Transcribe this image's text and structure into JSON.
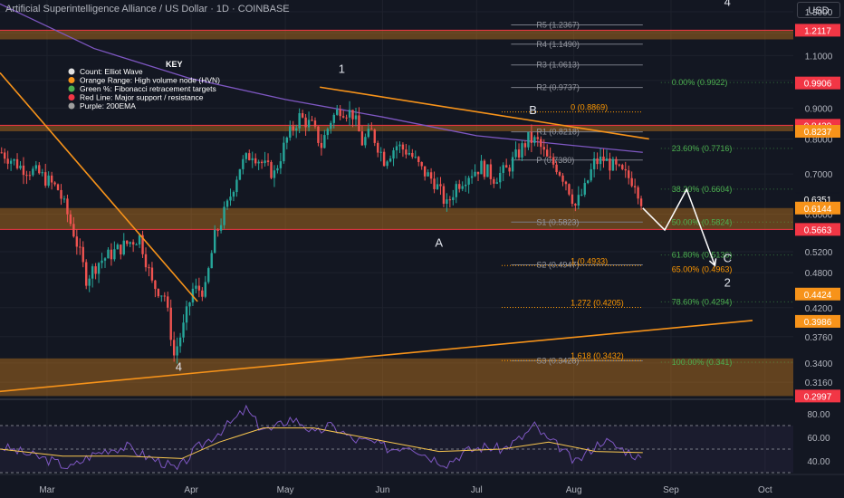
{
  "header": {
    "title": "Artificial Superintelligence Alliance / US Dollar · 1D · COINBASE",
    "currency_button": "USD"
  },
  "colors": {
    "background": "#131722",
    "up": "#26a69a",
    "down": "#ef5350",
    "orange": "#f7931a",
    "purple": "#7e57c2",
    "red_line": "#f23645",
    "fib_green": "#4caf50",
    "fib_orange": "#ff9800"
  },
  "chart_data": {
    "type": "candlestick",
    "scale": "log",
    "ylim": [
      0.297,
      1.36
    ],
    "price_ticks": [
      "1.3000",
      "1.2000",
      "1.1000",
      "1.0000",
      "0.9000",
      "0.8000",
      "0.7000",
      "0.6000",
      "0.5200",
      "0.4800",
      "0.4200",
      "0.3760",
      "0.3400",
      "0.3160"
    ],
    "price_tick_values": [
      1.3,
      1.2,
      1.1,
      1.0,
      0.9,
      0.8,
      0.7,
      0.6,
      0.52,
      0.48,
      0.42,
      0.376,
      0.34,
      0.316
    ],
    "price_badges": [
      {
        "text": "1.2117",
        "value": 1.2117,
        "color": "#f23645"
      },
      {
        "text": "0.9906",
        "value": 0.9906,
        "color": "#f23645"
      },
      {
        "text": "0.8429",
        "value": 0.8429,
        "color": "#f23645"
      },
      {
        "text": "0.8237",
        "value": 0.8237,
        "color": "#f7931a"
      },
      {
        "text": "0.6351",
        "value": 0.6351,
        "color": "#131722"
      },
      {
        "text": "0.6144",
        "value": 0.6144,
        "color": "#f7931a"
      },
      {
        "text": "0.5663",
        "value": 0.5663,
        "color": "#f23645"
      },
      {
        "text": "0.4424",
        "value": 0.4424,
        "color": "#f7931a"
      },
      {
        "text": "0.3986",
        "value": 0.3986,
        "color": "#f7931a"
      },
      {
        "text": "0.2997",
        "value": 0.2997,
        "color": "#f23645"
      }
    ],
    "x_labels": [
      "Mar",
      "Apr",
      "May",
      "Jun",
      "Jul",
      "Aug",
      "Sep",
      "Oct"
    ],
    "x_label_days": [
      15,
      61,
      91,
      122,
      152,
      183,
      214,
      244
    ],
    "x_range_days": [
      0,
      253
    ],
    "closes": [
      {
        "d": 0,
        "c": 0.76
      },
      {
        "d": 6,
        "c": 0.72
      },
      {
        "d": 12,
        "c": 0.7
      },
      {
        "d": 18,
        "c": 0.66
      },
      {
        "d": 23,
        "c": 0.56
      },
      {
        "d": 27,
        "c": 0.47
      },
      {
        "d": 31,
        "c": 0.5
      },
      {
        "d": 36,
        "c": 0.52
      },
      {
        "d": 41,
        "c": 0.54
      },
      {
        "d": 44,
        "c": 0.55
      },
      {
        "d": 48,
        "c": 0.46
      },
      {
        "d": 52,
        "c": 0.44
      },
      {
        "d": 55,
        "c": 0.35
      },
      {
        "d": 58,
        "c": 0.39
      },
      {
        "d": 61,
        "c": 0.45
      },
      {
        "d": 65,
        "c": 0.45
      },
      {
        "d": 68,
        "c": 0.55
      },
      {
        "d": 72,
        "c": 0.62
      },
      {
        "d": 76,
        "c": 0.72
      },
      {
        "d": 80,
        "c": 0.76
      },
      {
        "d": 84,
        "c": 0.72
      },
      {
        "d": 87,
        "c": 0.7
      },
      {
        "d": 91,
        "c": 0.8
      },
      {
        "d": 95,
        "c": 0.87
      },
      {
        "d": 99,
        "c": 0.84
      },
      {
        "d": 102,
        "c": 0.78
      },
      {
        "d": 105,
        "c": 0.86
      },
      {
        "d": 108,
        "c": 0.9
      },
      {
        "d": 112,
        "c": 0.88
      },
      {
        "d": 115,
        "c": 0.79
      },
      {
        "d": 118,
        "c": 0.82
      },
      {
        "d": 122,
        "c": 0.74
      },
      {
        "d": 126,
        "c": 0.78
      },
      {
        "d": 130,
        "c": 0.76
      },
      {
        "d": 134,
        "c": 0.71
      },
      {
        "d": 138,
        "c": 0.68
      },
      {
        "d": 142,
        "c": 0.62
      },
      {
        "d": 145,
        "c": 0.67
      },
      {
        "d": 149,
        "c": 0.7
      },
      {
        "d": 153,
        "c": 0.72
      },
      {
        "d": 157,
        "c": 0.69
      },
      {
        "d": 161,
        "c": 0.71
      },
      {
        "d": 165,
        "c": 0.76
      },
      {
        "d": 168,
        "c": 0.8
      },
      {
        "d": 171,
        "c": 0.79
      },
      {
        "d": 174,
        "c": 0.74
      },
      {
        "d": 177,
        "c": 0.72
      },
      {
        "d": 180,
        "c": 0.68
      },
      {
        "d": 183,
        "c": 0.62
      },
      {
        "d": 186,
        "c": 0.66
      },
      {
        "d": 189,
        "c": 0.73
      },
      {
        "d": 192,
        "c": 0.74
      },
      {
        "d": 195,
        "c": 0.72
      },
      {
        "d": 198,
        "c": 0.7
      },
      {
        "d": 202,
        "c": 0.68
      },
      {
        "d": 205,
        "c": 0.61
      }
    ],
    "projection": [
      {
        "d": 205,
        "c": 0.6144
      },
      {
        "d": 212,
        "c": 0.565
      },
      {
        "d": 219,
        "c": 0.66
      },
      {
        "d": 228,
        "c": 0.4933
      }
    ],
    "ema200": [
      {
        "d": 0,
        "c": 1.34
      },
      {
        "d": 30,
        "c": 1.13
      },
      {
        "d": 60,
        "c": 1.01
      },
      {
        "d": 91,
        "c": 0.93
      },
      {
        "d": 122,
        "c": 0.87
      },
      {
        "d": 152,
        "c": 0.81
      },
      {
        "d": 183,
        "c": 0.78
      },
      {
        "d": 205,
        "c": 0.76
      }
    ],
    "zones": [
      {
        "name": "Orange Range: High volume node (HVN)",
        "from": 1.17,
        "to": 1.2117
      },
      {
        "name": "Orange Range: High volume node (HVN)",
        "from": 0.8237,
        "to": 0.8429
      },
      {
        "name": "Orange Range: High volume node (HVN)",
        "from": 0.5663,
        "to": 0.6144
      },
      {
        "name": "Orange Range: High volume node (HVN)",
        "from": 0.2997,
        "to": 0.346
      }
    ],
    "red_lines": [
      1.2117,
      0.8429,
      0.5663
    ],
    "trendlines": [
      {
        "from": {
          "d": 0,
          "v": 1.03
        },
        "to": {
          "d": 63,
          "v": 0.43
        }
      },
      {
        "from": {
          "d": 102,
          "v": 0.975
        },
        "to": {
          "d": 207,
          "v": 0.8
        }
      },
      {
        "from": {
          "d": 0,
          "v": 0.305
        },
        "to": {
          "d": 240,
          "v": 0.4
        }
      }
    ],
    "pivots": [
      {
        "label": "R5 (1.2367)",
        "v": 1.2367
      },
      {
        "label": "R4 (1.1490)",
        "v": 1.149
      },
      {
        "label": "R3 (1.0613)",
        "v": 1.0613
      },
      {
        "label": "R2 (0.9737)",
        "v": 0.9737
      },
      {
        "label": "R1 (0.8218)",
        "v": 0.8218
      },
      {
        "label": "P (0.7380)",
        "v": 0.738
      },
      {
        "label": "S1 (0.5823)",
        "v": 0.5823
      },
      {
        "label": "S2 (0.4947)",
        "v": 0.4947
      },
      {
        "label": "S3 (0.3428)",
        "v": 0.3428
      }
    ],
    "fib_retracement": [
      {
        "label": "0.00% (0.9922)",
        "v": 0.9922
      },
      {
        "label": "23.60% (0.7716)",
        "v": 0.7716
      },
      {
        "label": "38.20% (0.6604)",
        "v": 0.6604
      },
      {
        "label": "50.00% (0.5824)",
        "v": 0.5824
      },
      {
        "label": "61.80% (0.5136)",
        "v": 0.5136
      },
      {
        "label": "78.60% (0.4294)",
        "v": 0.4294
      },
      {
        "label": "100.00% (0.341)",
        "v": 0.341
      }
    ],
    "fib_extension": [
      {
        "label": "0 (0.8869)",
        "v": 0.8869
      },
      {
        "label": "1 (0.4933)",
        "v": 0.4933
      },
      {
        "label": "1.272 (0.4205)",
        "v": 0.4205
      },
      {
        "label": "1.618 (0.3432)",
        "v": 0.3432
      }
    ],
    "fib_65": {
      "label": "65.00% (0.4963)",
      "v": 0.4963
    },
    "wave_labels": [
      {
        "text": "4",
        "d": 57,
        "v": 0.33
      },
      {
        "text": "1",
        "d": 109,
        "v": 1.03
      },
      {
        "text": "A",
        "d": 140,
        "v": 0.53
      },
      {
        "text": "B",
        "d": 170,
        "v": 0.88
      },
      {
        "text": "C",
        "d": 232,
        "v": 0.5
      },
      {
        "text": "2",
        "d": 232,
        "v": 0.455
      },
      {
        "text": "4",
        "d": 232,
        "v": 1.33
      }
    ],
    "key": {
      "title": "KEY",
      "items": [
        {
          "text": "Count: Elliot Wave",
          "color": "#e0e0e0"
        },
        {
          "text": "Orange Range: High volume node (HVN)",
          "color": "#f7931a"
        },
        {
          "text": "Green %: Fibonacci retracement targets",
          "color": "#4caf50"
        },
        {
          "text": "Red Line: Major support / resistance",
          "color": "#f23645"
        },
        {
          "text": "Purple: 200EMA",
          "color": "#9e9e9e"
        }
      ]
    },
    "rsi": {
      "ylim": [
        30,
        90
      ],
      "ticks": [
        "80.00",
        "60.00",
        "40.00"
      ],
      "tick_values": [
        80,
        60,
        40
      ],
      "band": [
        30,
        70
      ],
      "values": [
        {
          "d": 0,
          "v": 52
        },
        {
          "d": 8,
          "v": 46
        },
        {
          "d": 16,
          "v": 40
        },
        {
          "d": 22,
          "v": 34
        },
        {
          "d": 28,
          "v": 44
        },
        {
          "d": 34,
          "v": 50
        },
        {
          "d": 40,
          "v": 52
        },
        {
          "d": 46,
          "v": 44
        },
        {
          "d": 52,
          "v": 38
        },
        {
          "d": 56,
          "v": 32
        },
        {
          "d": 62,
          "v": 50
        },
        {
          "d": 68,
          "v": 62
        },
        {
          "d": 74,
          "v": 74
        },
        {
          "d": 78,
          "v": 84
        },
        {
          "d": 82,
          "v": 70
        },
        {
          "d": 86,
          "v": 66
        },
        {
          "d": 92,
          "v": 76
        },
        {
          "d": 96,
          "v": 72
        },
        {
          "d": 100,
          "v": 62
        },
        {
          "d": 104,
          "v": 70
        },
        {
          "d": 108,
          "v": 66
        },
        {
          "d": 112,
          "v": 58
        },
        {
          "d": 118,
          "v": 56
        },
        {
          "d": 124,
          "v": 50
        },
        {
          "d": 130,
          "v": 54
        },
        {
          "d": 136,
          "v": 44
        },
        {
          "d": 142,
          "v": 38
        },
        {
          "d": 148,
          "v": 48
        },
        {
          "d": 154,
          "v": 52
        },
        {
          "d": 160,
          "v": 50
        },
        {
          "d": 166,
          "v": 60
        },
        {
          "d": 170,
          "v": 70
        },
        {
          "d": 174,
          "v": 58
        },
        {
          "d": 178,
          "v": 52
        },
        {
          "d": 183,
          "v": 38
        },
        {
          "d": 188,
          "v": 50
        },
        {
          "d": 192,
          "v": 58
        },
        {
          "d": 196,
          "v": 52
        },
        {
          "d": 200,
          "v": 48
        },
        {
          "d": 205,
          "v": 40
        }
      ],
      "sma": [
        {
          "d": 0,
          "v": 50
        },
        {
          "d": 20,
          "v": 44
        },
        {
          "d": 40,
          "v": 44
        },
        {
          "d": 58,
          "v": 42
        },
        {
          "d": 70,
          "v": 56
        },
        {
          "d": 84,
          "v": 68
        },
        {
          "d": 100,
          "v": 68
        },
        {
          "d": 120,
          "v": 58
        },
        {
          "d": 140,
          "v": 48
        },
        {
          "d": 160,
          "v": 50
        },
        {
          "d": 175,
          "v": 56
        },
        {
          "d": 190,
          "v": 48
        },
        {
          "d": 205,
          "v": 47
        }
      ]
    }
  }
}
